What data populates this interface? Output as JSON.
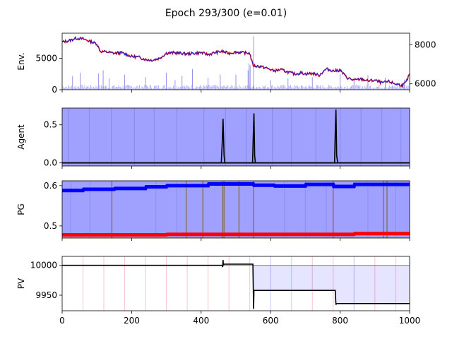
{
  "figure": {
    "title": "Epoch 293/300 (e=0.01)"
  },
  "chart_data": [
    {
      "type": "line",
      "panel": "env",
      "ylabel": "Env.",
      "xlim": [
        0,
        1000
      ],
      "ylim": [
        0,
        9000
      ],
      "yticks": [
        "0",
        "5000"
      ],
      "ytick_values": [
        0,
        5000
      ],
      "right_ylim": [
        5700,
        8600
      ],
      "right_yticks": [
        "6000",
        "8000"
      ],
      "right_ytick_values": [
        6000,
        8000
      ],
      "price_x": [
        0,
        20,
        40,
        60,
        80,
        100,
        110,
        130,
        150,
        170,
        190,
        200,
        220,
        240,
        260,
        280,
        300,
        320,
        340,
        360,
        380,
        400,
        420,
        440,
        460,
        480,
        500,
        520,
        540,
        548,
        552,
        570,
        590,
        610,
        630,
        650,
        670,
        690,
        700,
        720,
        740,
        760,
        780,
        800,
        820,
        840,
        860,
        880,
        900,
        920,
        940,
        960,
        980,
        990,
        1000
      ],
      "price_y": [
        7600,
        7800,
        8200,
        8100,
        7700,
        7300,
        6100,
        6000,
        5800,
        5900,
        5500,
        5300,
        5200,
        4800,
        4700,
        5000,
        5800,
        5900,
        5800,
        5700,
        5800,
        5900,
        5600,
        5900,
        6100,
        5800,
        6000,
        5900,
        5800,
        4100,
        3800,
        3700,
        3400,
        3000,
        3200,
        2800,
        2500,
        2700,
        2500,
        2600,
        2300,
        3300,
        3000,
        3100,
        1900,
        1500,
        1700,
        1400,
        1500,
        1100,
        1300,
        900,
        700,
        1200,
        2500
      ],
      "volume_spikes": [
        {
          "x": 30,
          "v": 2200
        },
        {
          "x": 52,
          "v": 2700
        },
        {
          "x": 105,
          "v": 2600
        },
        {
          "x": 118,
          "v": 3100
        },
        {
          "x": 135,
          "v": 1800
        },
        {
          "x": 180,
          "v": 2400
        },
        {
          "x": 240,
          "v": 2000
        },
        {
          "x": 300,
          "v": 2700
        },
        {
          "x": 325,
          "v": 1500
        },
        {
          "x": 345,
          "v": 2200
        },
        {
          "x": 375,
          "v": 3300
        },
        {
          "x": 420,
          "v": 1900
        },
        {
          "x": 455,
          "v": 2400
        },
        {
          "x": 500,
          "v": 2400
        },
        {
          "x": 535,
          "v": 3100
        },
        {
          "x": 538,
          "v": 4200
        },
        {
          "x": 541,
          "v": 3900
        },
        {
          "x": 551,
          "v": 8500
        },
        {
          "x": 600,
          "v": 1500
        },
        {
          "x": 650,
          "v": 1800
        },
        {
          "x": 720,
          "v": 2000
        },
        {
          "x": 800,
          "v": 2500
        },
        {
          "x": 840,
          "v": 1900
        },
        {
          "x": 880,
          "v": 2300
        },
        {
          "x": 930,
          "v": 1900
        },
        {
          "x": 985,
          "v": 1600
        }
      ]
    },
    {
      "type": "line",
      "panel": "agent",
      "ylabel": "Agent",
      "xlim": [
        0,
        1000
      ],
      "ylim": [
        -0.04,
        0.72
      ],
      "yticks": [
        "0.0",
        "0.5"
      ],
      "ytick_values": [
        0.0,
        0.5
      ],
      "series": [
        {
          "x": [
            0,
            458,
            461,
            463,
            466,
            468,
            1000
          ],
          "y": [
            0.0,
            0.0,
            0.3,
            0.58,
            0.1,
            0.0,
            0.0
          ]
        },
        {
          "x": [
            0,
            548,
            550,
            552,
            554,
            556,
            1000
          ],
          "y": [
            0.0,
            0.0,
            0.35,
            0.65,
            0.1,
            0.0,
            0.0
          ]
        },
        {
          "x": [
            0,
            784,
            786,
            788,
            790,
            793,
            1000
          ],
          "y": [
            0.0,
            0.0,
            0.4,
            0.7,
            0.1,
            0.0,
            0.0
          ]
        }
      ],
      "vlines_x": [
        18,
        78,
        142,
        208,
        265,
        330,
        408,
        470,
        530,
        605,
        660,
        730,
        800,
        860,
        920,
        975
      ]
    },
    {
      "type": "line",
      "panel": "pg",
      "ylabel": "PG",
      "xlim": [
        0,
        1000
      ],
      "ylim": [
        0.47,
        0.612
      ],
      "yticks": [
        "0.5",
        "0.6"
      ],
      "ytick_values": [
        0.5,
        0.6
      ],
      "series": [
        {
          "x": [
            0,
            60,
            62,
            150,
            152,
            240,
            242,
            300,
            302,
            420,
            422,
            550,
            552,
            610,
            612,
            700,
            702,
            780,
            782,
            840,
            842,
            1000
          ],
          "y": [
            0.588,
            0.588,
            0.591,
            0.591,
            0.593,
            0.593,
            0.597,
            0.597,
            0.6,
            0.6,
            0.604,
            0.604,
            0.601,
            0.601,
            0.599,
            0.599,
            0.603,
            0.603,
            0.598,
            0.598,
            0.603,
            0.603
          ]
        },
        {
          "x": [
            0,
            300,
            302,
            840,
            842,
            1000
          ],
          "y": [
            0.478,
            0.478,
            0.479,
            0.479,
            0.481,
            0.481
          ]
        }
      ],
      "vlines_x": [
        143,
        357,
        405,
        462,
        466,
        509,
        551,
        780,
        925,
        935
      ],
      "bg_vlines_x": [
        25,
        80,
        270,
        330,
        640,
        700,
        760,
        880,
        960
      ]
    },
    {
      "type": "line",
      "panel": "pv",
      "ylabel": "PV",
      "xlabel": "",
      "xlim": [
        0,
        1000
      ],
      "ylim": [
        9924,
        10015
      ],
      "yticks": [
        "9950",
        "10000"
      ],
      "ytick_values": [
        9950,
        10000
      ],
      "xticks": [
        "0",
        "200",
        "400",
        "600",
        "800",
        "1000"
      ],
      "xtick_values": [
        0,
        200,
        400,
        600,
        800,
        1000
      ],
      "baseline": 10000,
      "series": [
        {
          "x": [
            0,
            461,
            462,
            463,
            464,
            465,
            466,
            549,
            550,
            551,
            552,
            553,
            786,
            787,
            788,
            789,
            790,
            1000
          ],
          "y": [
            10000,
            10000,
            9997,
            10009,
            10000,
            10002,
            10002,
            10002,
            9962,
            9927,
            9958,
            9958,
            9958,
            9945,
            9934,
            9936,
            9936,
            9936
          ]
        }
      ],
      "red_vlines_x": [
        60,
        120,
        180,
        240,
        300,
        360,
        420,
        480,
        540,
        660,
        720,
        780,
        900,
        960
      ],
      "blue_vlines_x": [
        600,
        840
      ]
    }
  ]
}
